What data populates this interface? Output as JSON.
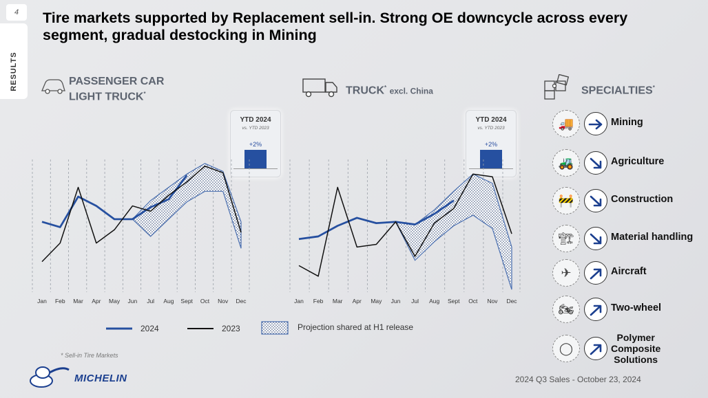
{
  "page": {
    "number": "4",
    "side_tab": "RESULTS"
  },
  "title": "Tire markets supported by Replacement sell-in. Strong OE downcycle across every segment, gradual destocking in Mining",
  "segments": {
    "passenger": {
      "title_line1": "PASSENGER CAR",
      "title_line2": "LIGHT TRUCK",
      "sup": "*"
    },
    "truck": {
      "title": "TRUCK",
      "sup": "*",
      "excl": "excl. China"
    },
    "specialties": {
      "title": "SPECIALTIES",
      "sup": "*"
    }
  },
  "ytd": {
    "label": "YTD 2024",
    "sub": "vs. YTD 2023",
    "passenger_pct": "+2%",
    "truck_pct": "+2%",
    "passenger_value": 2,
    "truck_value": 2
  },
  "legend": {
    "s2024": "2024",
    "s2023": "2023",
    "projection": "Projection shared at H1 release"
  },
  "colors": {
    "s2024": "#2650a0",
    "s2023": "#111111",
    "projection_outline": "#4a6fb0"
  },
  "chart_data": [
    {
      "type": "line",
      "title": "PASSENGER CAR LIGHT TRUCK*",
      "categories": [
        "Jan",
        "Feb",
        "Mar",
        "Apr",
        "May",
        "Jun",
        "Jul",
        "Aug",
        "Sept",
        "Oct",
        "Nov",
        "Dec"
      ],
      "ylim": [
        0,
        100
      ],
      "series": [
        {
          "name": "2024",
          "values": [
            53,
            49,
            72,
            65,
            55,
            55,
            64,
            70,
            88,
            null,
            null,
            null
          ]
        },
        {
          "name": "2023",
          "values": [
            23,
            37,
            79,
            37,
            47,
            65,
            61,
            73,
            83,
            95,
            90,
            45
          ]
        }
      ],
      "projection": {
        "upper": [
          null,
          null,
          null,
          null,
          null,
          55,
          69,
          79,
          89,
          97,
          91,
          53
        ],
        "lower": [
          null,
          null,
          null,
          null,
          null,
          55,
          42,
          55,
          68,
          76,
          76,
          33
        ]
      }
    },
    {
      "type": "line",
      "title": "TRUCK* excl. China",
      "categories": [
        "Jan",
        "Feb",
        "Mar",
        "Apr",
        "May",
        "Jun",
        "Jul",
        "Aug",
        "Sept",
        "Oct",
        "Nov",
        "Dec"
      ],
      "ylim": [
        0,
        100
      ],
      "series": [
        {
          "name": "2024",
          "values": [
            40,
            42,
            50,
            56,
            52,
            53,
            51,
            59,
            69,
            null,
            null,
            null
          ]
        },
        {
          "name": "2023",
          "values": [
            20,
            12,
            79,
            34,
            36,
            53,
            27,
            52,
            63,
            89,
            87,
            44
          ]
        }
      ],
      "projection": {
        "upper": [
          null,
          null,
          null,
          null,
          null,
          53,
          51,
          62,
          76,
          89,
          82,
          34
        ],
        "lower": [
          null,
          null,
          null,
          null,
          null,
          53,
          24,
          38,
          50,
          58,
          48,
          2
        ]
      }
    }
  ],
  "specialties": [
    {
      "label": "Mining",
      "icon": "mining-truck-icon",
      "glyph": "🚚",
      "trend": "flat"
    },
    {
      "label": "Agriculture",
      "icon": "tractor-icon",
      "glyph": "🚜",
      "trend": "down"
    },
    {
      "label": "Construction",
      "icon": "loader-icon",
      "glyph": "🚧",
      "trend": "down"
    },
    {
      "label": "Material handling",
      "icon": "forklift-icon",
      "glyph": "🏗",
      "trend": "down"
    },
    {
      "label": "Aircraft",
      "icon": "aircraft-icon",
      "glyph": "✈",
      "trend": "up"
    },
    {
      "label": "Two-wheel",
      "icon": "motorcycle-icon",
      "glyph": "🏍",
      "trend": "up"
    },
    {
      "label": "Polymer\nComposite\nSolutions",
      "icon": "polymer-icon",
      "glyph": "◯",
      "trend": "up"
    }
  ],
  "footnote": "* Sell-in Tire Markets",
  "brand": "MICHELIN",
  "footer": "2024 Q3 Sales - October 23, 2024"
}
